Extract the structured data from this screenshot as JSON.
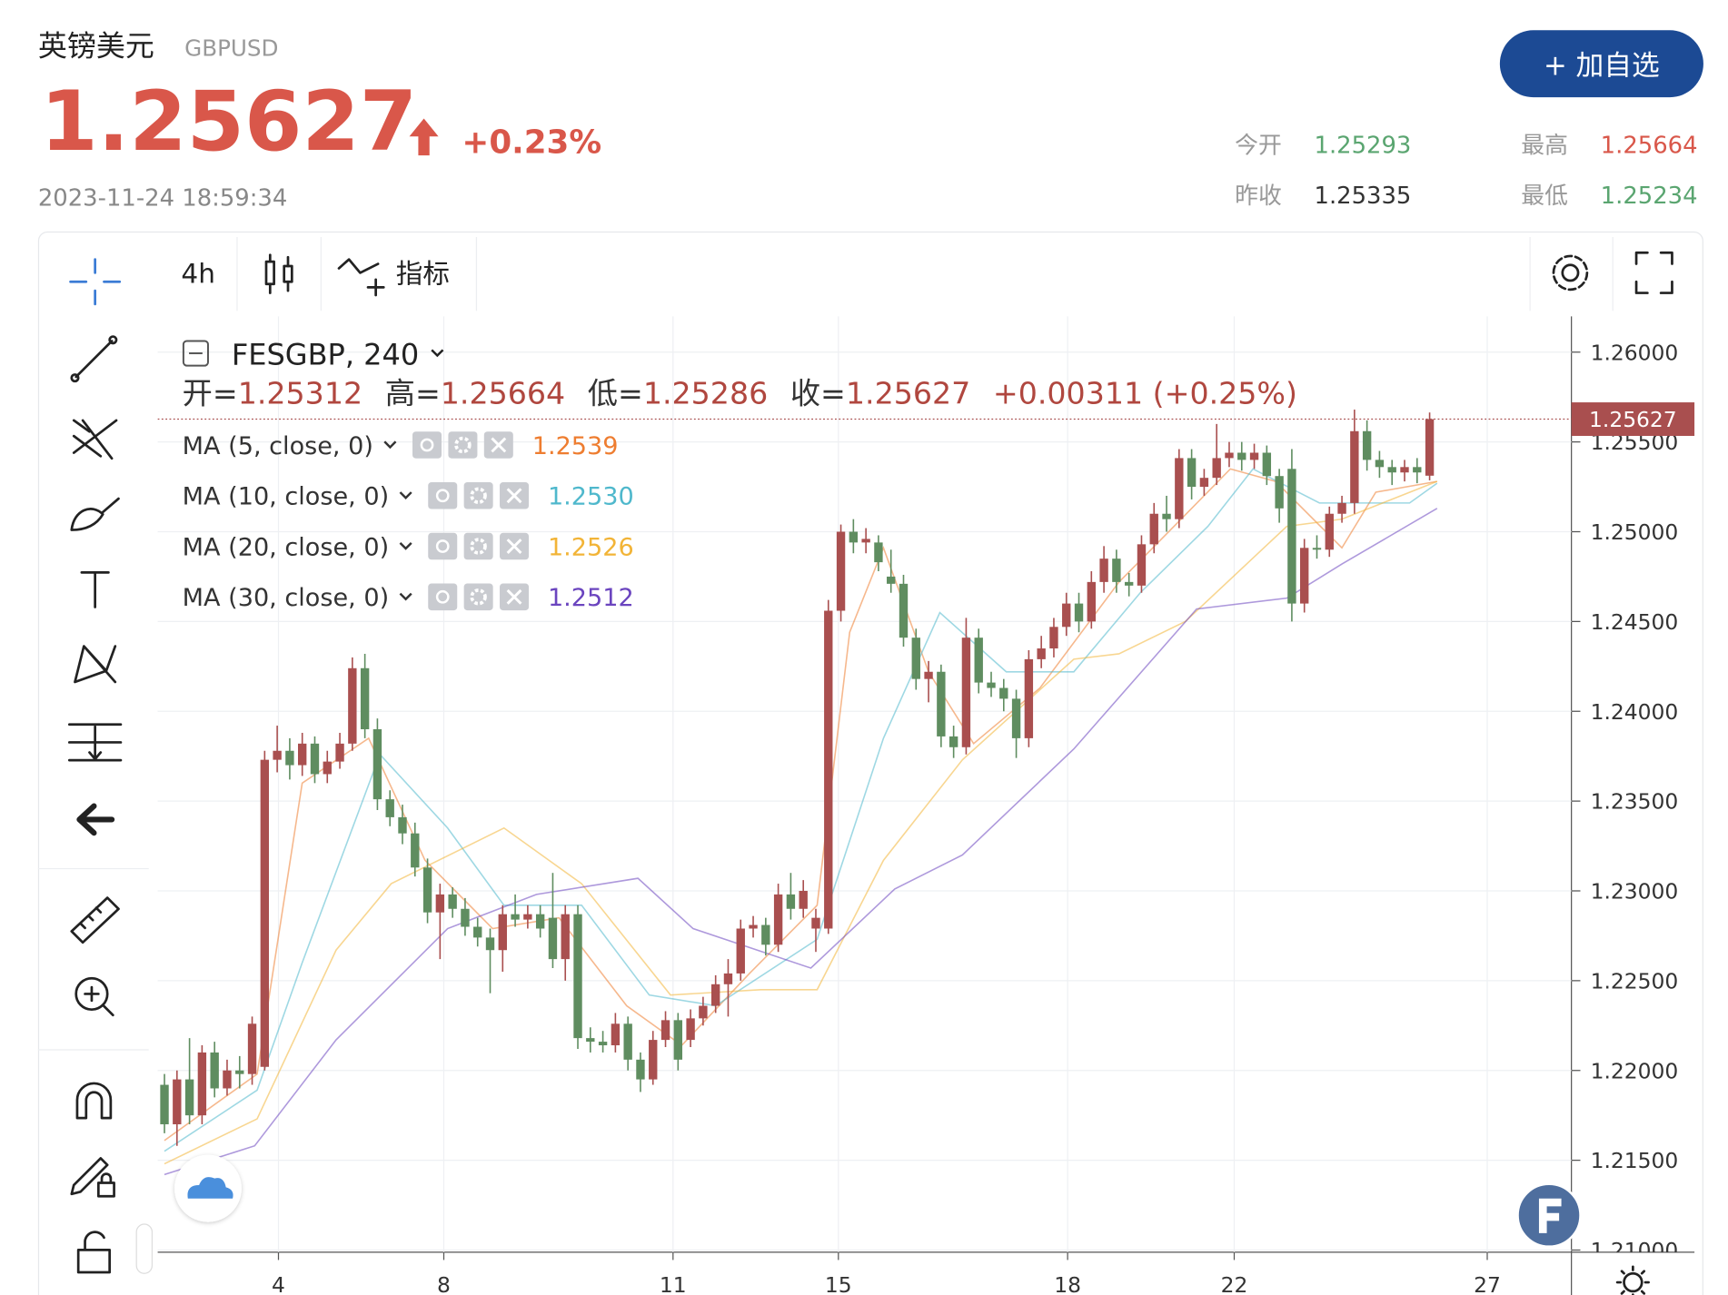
{
  "header": {
    "name": "英镑美元",
    "symbol": "GBPUSD",
    "price": "1.25627",
    "change": "+0.23%",
    "time": "2023-11-24 18:59:34",
    "button": "+ 加自选",
    "stats": [
      {
        "label": "今开",
        "value": "1.25293"
      },
      {
        "label": "最高",
        "value": "1.25664"
      },
      {
        "label": "昨收",
        "value": "1.25335"
      },
      {
        "label": "最低",
        "value": "1.25234"
      }
    ]
  },
  "toolbar": {
    "interval": "4h",
    "indicators": "指标"
  },
  "chart_data": {
    "type": "candlestick",
    "title": "FESGBP, 240",
    "ohlc_labels": [
      {
        "label": "开=",
        "value": "1.25312"
      },
      {
        "label": "高=",
        "value": "1.25664"
      },
      {
        "label": "低=",
        "value": "1.25286"
      },
      {
        "label": "收=",
        "value": "1.25627"
      }
    ],
    "change_label": "+0.00311 (+0.25%)",
    "up_color": "#a94f4f",
    "down_color": "#5f8d60",
    "candles": [
      [
        1.2192,
        1.2198,
        1.2165,
        1.217
      ],
      [
        1.217,
        1.22,
        1.2158,
        1.2195
      ],
      [
        1.2195,
        1.2218,
        1.217,
        1.2175
      ],
      [
        1.2175,
        1.2214,
        1.217,
        1.221
      ],
      [
        1.221,
        1.2216,
        1.2185,
        1.219
      ],
      [
        1.219,
        1.2206,
        1.2186,
        1.22
      ],
      [
        1.22,
        1.2208,
        1.219,
        1.2198
      ],
      [
        1.2198,
        1.223,
        1.2192,
        1.2226
      ],
      [
        1.2202,
        1.2378,
        1.22,
        1.2373
      ],
      [
        1.2373,
        1.2392,
        1.2366,
        1.2378
      ],
      [
        1.2378,
        1.2385,
        1.2362,
        1.237
      ],
      [
        1.237,
        1.2388,
        1.2364,
        1.2382
      ],
      [
        1.2382,
        1.2386,
        1.236,
        1.2365
      ],
      [
        1.2365,
        1.2378,
        1.236,
        1.2372
      ],
      [
        1.2372,
        1.2388,
        1.2368,
        1.2382
      ],
      [
        1.2382,
        1.243,
        1.2378,
        1.2424
      ],
      [
        1.2424,
        1.2432,
        1.2385,
        1.239
      ],
      [
        1.239,
        1.2396,
        1.2345,
        1.2351
      ],
      [
        1.2351,
        1.2356,
        1.2336,
        1.2341
      ],
      [
        1.2341,
        1.2348,
        1.2326,
        1.2332
      ],
      [
        1.2332,
        1.2338,
        1.2308,
        1.2313
      ],
      [
        1.2313,
        1.2318,
        1.2282,
        1.2288
      ],
      [
        1.2288,
        1.2304,
        1.2262,
        1.2298
      ],
      [
        1.2298,
        1.2302,
        1.2285,
        1.229
      ],
      [
        1.229,
        1.2296,
        1.2275,
        1.228
      ],
      [
        1.228,
        1.2285,
        1.2269,
        1.2274
      ],
      [
        1.2274,
        1.2279,
        1.2243,
        1.2267
      ],
      [
        1.2267,
        1.2292,
        1.2255,
        1.2287
      ],
      [
        1.2287,
        1.2298,
        1.228,
        1.2284
      ],
      [
        1.2284,
        1.2292,
        1.2279,
        1.2287
      ],
      [
        1.2287,
        1.2292,
        1.2274,
        1.2279
      ],
      [
        1.2285,
        1.231,
        1.2257,
        1.2262
      ],
      [
        1.2262,
        1.2292,
        1.225,
        1.2287
      ],
      [
        1.2287,
        1.2292,
        1.2212,
        1.2218
      ],
      [
        1.2218,
        1.2224,
        1.221,
        1.2216
      ],
      [
        1.2216,
        1.2222,
        1.221,
        1.2214
      ],
      [
        1.2214,
        1.2232,
        1.221,
        1.2226
      ],
      [
        1.2226,
        1.223,
        1.22,
        1.2206
      ],
      [
        1.2206,
        1.221,
        1.2188,
        1.2195
      ],
      [
        1.2195,
        1.2222,
        1.2192,
        1.2217
      ],
      [
        1.2217,
        1.2233,
        1.2213,
        1.2228
      ],
      [
        1.2228,
        1.2232,
        1.22,
        1.2206
      ],
      [
        1.2217,
        1.2234,
        1.2213,
        1.2229
      ],
      [
        1.2229,
        1.2241,
        1.2225,
        1.2236
      ],
      [
        1.2236,
        1.2253,
        1.2232,
        1.2248
      ],
      [
        1.2248,
        1.2262,
        1.223,
        1.2254
      ],
      [
        1.2254,
        1.2284,
        1.225,
        1.2279
      ],
      [
        1.2279,
        1.2286,
        1.2274,
        1.2281
      ],
      [
        1.2281,
        1.2285,
        1.2264,
        1.227
      ],
      [
        1.227,
        1.2304,
        1.2266,
        1.2298
      ],
      [
        1.2298,
        1.231,
        1.2284,
        1.229
      ],
      [
        1.229,
        1.2306,
        1.2285,
        1.23
      ],
      [
        1.2279,
        1.229,
        1.2266,
        1.2285
      ],
      [
        1.2279,
        1.2462,
        1.2276,
        1.2456
      ],
      [
        1.2456,
        1.2504,
        1.245,
        1.25
      ],
      [
        1.25,
        1.2507,
        1.2488,
        1.2494
      ],
      [
        1.2494,
        1.2502,
        1.2488,
        1.2496
      ],
      [
        1.2494,
        1.2498,
        1.2478,
        1.2483
      ],
      [
        1.2475,
        1.249,
        1.2466,
        1.2471
      ],
      [
        1.2471,
        1.2476,
        1.2436,
        1.2441
      ],
      [
        1.2441,
        1.2446,
        1.2412,
        1.2418
      ],
      [
        1.2418,
        1.2428,
        1.2405,
        1.2422
      ],
      [
        1.2422,
        1.2426,
        1.238,
        1.2386
      ],
      [
        1.2386,
        1.2392,
        1.2374,
        1.238
      ],
      [
        1.238,
        1.2452,
        1.2376,
        1.2441
      ],
      [
        1.2441,
        1.2446,
        1.241,
        1.2416
      ],
      [
        1.2416,
        1.2422,
        1.2408,
        1.2413
      ],
      [
        1.2413,
        1.2418,
        1.24,
        1.2407
      ],
      [
        1.2407,
        1.2412,
        1.2374,
        1.2385
      ],
      [
        1.2385,
        1.2434,
        1.238,
        1.2429
      ],
      [
        1.2429,
        1.2442,
        1.2424,
        1.2435
      ],
      [
        1.2435,
        1.2452,
        1.243,
        1.2447
      ],
      [
        1.2447,
        1.2466,
        1.2442,
        1.246
      ],
      [
        1.246,
        1.2466,
        1.2444,
        1.245
      ],
      [
        1.245,
        1.2478,
        1.2446,
        1.2472
      ],
      [
        1.2472,
        1.2492,
        1.2466,
        1.2485
      ],
      [
        1.2485,
        1.249,
        1.2466,
        1.2472
      ],
      [
        1.2472,
        1.2477,
        1.2464,
        1.247
      ],
      [
        1.247,
        1.2498,
        1.2466,
        1.2493
      ],
      [
        1.2493,
        1.2516,
        1.2488,
        1.251
      ],
      [
        1.251,
        1.252,
        1.25,
        1.2507
      ],
      [
        1.2507,
        1.2546,
        1.2502,
        1.2541
      ],
      [
        1.2541,
        1.2546,
        1.2518,
        1.2525
      ],
      [
        1.2525,
        1.2535,
        1.252,
        1.253
      ],
      [
        1.253,
        1.256,
        1.2526,
        1.2541
      ],
      [
        1.2541,
        1.255,
        1.2536,
        1.2544
      ],
      [
        1.2544,
        1.255,
        1.2534,
        1.254
      ],
      [
        1.254,
        1.2549,
        1.2535,
        1.2544
      ],
      [
        1.2544,
        1.2548,
        1.2526,
        1.2531
      ],
      [
        1.2531,
        1.2535,
        1.2505,
        1.2513
      ],
      [
        1.2535,
        1.2546,
        1.245,
        1.246
      ],
      [
        1.246,
        1.2496,
        1.2455,
        1.2491
      ],
      [
        1.2491,
        1.2498,
        1.2485,
        1.249
      ],
      [
        1.249,
        1.2514,
        1.2486,
        1.251
      ],
      [
        1.251,
        1.252,
        1.2505,
        1.2516
      ],
      [
        1.2516,
        1.2568,
        1.251,
        1.2556
      ],
      [
        1.2556,
        1.2562,
        1.2534,
        1.254
      ],
      [
        1.254,
        1.2545,
        1.253,
        1.2536
      ],
      [
        1.2536,
        1.254,
        1.2526,
        1.2533
      ],
      [
        1.2533,
        1.254,
        1.2528,
        1.2536
      ],
      [
        1.2536,
        1.2541,
        1.2527,
        1.2533
      ],
      [
        1.25312,
        1.25664,
        1.25286,
        1.25627
      ]
    ],
    "series": [
      {
        "name": "MA (5, close, 0)",
        "color": "#ee7d30",
        "legend_value": {
          "value": 1.2539,
          "label": "1.2539"
        },
        "x": [
          0,
          7.4,
          11,
          16.3,
          20.8,
          26.2,
          31.5,
          36.9,
          41.3,
          46.7,
          52.1,
          54.7,
          57.4,
          61,
          64.6,
          69.9,
          76.2,
          80.6,
          85.1,
          88.7,
          94,
          96.7,
          101.6
        ],
        "values": [
          1.2161,
          1.2198,
          1.236,
          1.2385,
          1.2317,
          1.2279,
          1.2285,
          1.2236,
          1.2214,
          1.2254,
          1.2292,
          1.2444,
          1.2491,
          1.2422,
          1.2382,
          1.2413,
          1.2472,
          1.2503,
          1.2535,
          1.2528,
          1.2491,
          1.2522,
          1.2528
        ]
      },
      {
        "name": "MA (10, close, 0)",
        "color": "#4fb8cc",
        "legend_value": {
          "value": 1.253,
          "label": "1.2530"
        },
        "x": [
          0,
          7.4,
          11,
          17.2,
          22.6,
          27.1,
          33.3,
          38.7,
          44,
          52.1,
          57.4,
          61.9,
          67.2,
          72.6,
          77.9,
          83.3,
          86.9,
          92.2,
          99.4,
          101.6
        ],
        "values": [
          1.2155,
          1.2189,
          1.226,
          1.2376,
          1.2335,
          1.2292,
          1.2292,
          1.2242,
          1.2236,
          1.2273,
          1.2385,
          1.2455,
          1.2422,
          1.2422,
          1.2466,
          1.2503,
          1.2535,
          1.2516,
          1.2516,
          1.2527
        ]
      },
      {
        "name": "MA (20, close, 0)",
        "color": "#f2b437",
        "legend_value": {
          "value": 1.2526,
          "label": "1.2526"
        },
        "x": [
          0,
          7.4,
          13.7,
          18.1,
          27.1,
          33.3,
          40.4,
          47.6,
          52.1,
          57.4,
          63.7,
          72.6,
          76.2,
          81.5,
          89.6,
          94,
          101.6
        ],
        "values": [
          1.2148,
          1.2173,
          1.2267,
          1.2304,
          1.2335,
          1.2304,
          1.2242,
          1.2245,
          1.2245,
          1.2317,
          1.2373,
          1.2429,
          1.2432,
          1.245,
          1.2503,
          1.2507,
          1.2528
        ]
      },
      {
        "name": "MA (30, close, 0)",
        "color": "#6b45bf",
        "legend_value": {
          "value": 1.2512,
          "label": "1.2512"
        },
        "x": [
          0,
          7.2,
          13.7,
          22.6,
          29.7,
          37.8,
          42.2,
          51.6,
          58.3,
          63.7,
          72.6,
          82.4,
          89.6,
          94,
          101.6
        ],
        "values": [
          1.2142,
          1.2158,
          1.2217,
          1.2279,
          1.2298,
          1.2307,
          1.2279,
          1.2257,
          1.2301,
          1.232,
          1.2379,
          1.2457,
          1.2463,
          1.2482,
          1.2513
        ]
      }
    ],
    "last_price": 1.25627,
    "xlim": [
      -0.54,
      112.32
    ],
    "xticks": [
      {
        "value": 9.1,
        "label": "4"
      },
      {
        "value": 22.3,
        "label": "8"
      },
      {
        "value": 40.6,
        "label": "11"
      },
      {
        "value": 53.8,
        "label": "15"
      },
      {
        "value": 72.1,
        "label": "18"
      },
      {
        "value": 85.4,
        "label": "22"
      },
      {
        "value": 105.6,
        "label": "27"
      }
    ],
    "ylim": [
      1.20988,
      1.26199
    ],
    "yticks": [
      {
        "value": 1.26,
        "label": "1.26000"
      },
      {
        "value": 1.255,
        "label": "1.25500"
      },
      {
        "value": 1.25,
        "label": "1.25000"
      },
      {
        "value": 1.245,
        "label": "1.24500"
      },
      {
        "value": 1.24,
        "label": "1.24000"
      },
      {
        "value": 1.235,
        "label": "1.23500"
      },
      {
        "value": 1.23,
        "label": "1.23000"
      },
      {
        "value": 1.225,
        "label": "1.22500"
      },
      {
        "value": 1.22,
        "label": "1.22000"
      },
      {
        "value": 1.215,
        "label": "1.21500"
      },
      {
        "value": 1.21,
        "label": "1.21000"
      }
    ],
    "grid": true
  }
}
